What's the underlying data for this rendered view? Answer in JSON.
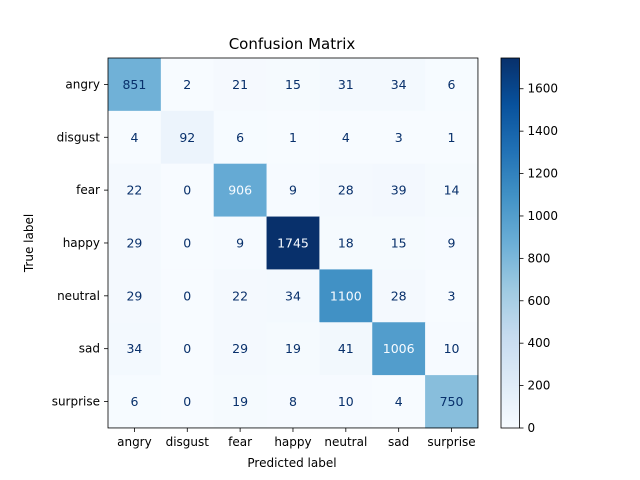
{
  "chart_data": {
    "type": "heatmap",
    "title": "Confusion Matrix",
    "xlabel": "Predicted label",
    "ylabel": "True label",
    "x_categories": [
      "angry",
      "disgust",
      "fear",
      "happy",
      "neutral",
      "sad",
      "surprise"
    ],
    "y_categories": [
      "angry",
      "disgust",
      "fear",
      "happy",
      "neutral",
      "sad",
      "surprise"
    ],
    "values": [
      [
        851,
        2,
        21,
        15,
        31,
        34,
        6
      ],
      [
        4,
        92,
        6,
        1,
        4,
        3,
        1
      ],
      [
        22,
        0,
        906,
        9,
        28,
        39,
        14
      ],
      [
        29,
        0,
        9,
        1745,
        18,
        15,
        9
      ],
      [
        29,
        0,
        22,
        34,
        1100,
        28,
        3
      ],
      [
        34,
        0,
        29,
        19,
        41,
        1006,
        10
      ],
      [
        6,
        0,
        19,
        8,
        10,
        4,
        750
      ]
    ],
    "colormap": "Blues",
    "colorbar": {
      "range": [
        0,
        1745
      ],
      "ticks": [
        0,
        200,
        400,
        600,
        800,
        1000,
        1200,
        1400,
        1600
      ]
    }
  }
}
